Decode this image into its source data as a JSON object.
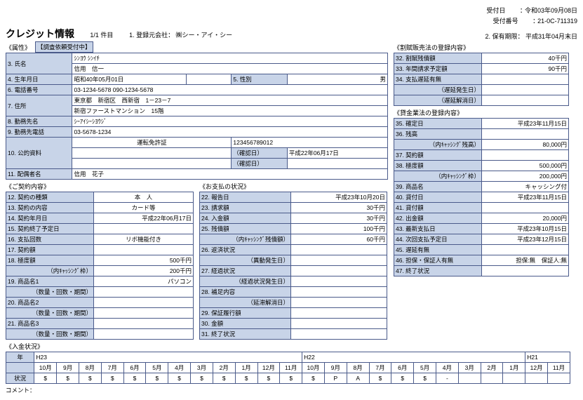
{
  "header": {
    "receipt_date_label": "受付日",
    "receipt_date": "令和03年09月08日",
    "receipt_no_label": "受付番号",
    "receipt_no": "21-0C-711319",
    "retention_label": "2. 保有期限：",
    "retention": "平成31年04月末日"
  },
  "title": "クレジット情報",
  "page_info": "1/1 件目",
  "reg_company_label": "1. 登録元会社：",
  "reg_company": "㈱シー・アイ・シー",
  "attr_header": "《属性》",
  "notice": "【調査依頼受付中】",
  "rows": {
    "r3_label": "3. 氏名",
    "r3_kana": "ｼﾝﾖｳ ｼﾝｲﾁ",
    "r3_name": "信用　信一",
    "r4_label": "4. 生年月日",
    "r4_val": "昭和40年05月01日",
    "r5_label": "5. 性別",
    "r5_val": "男",
    "r6_label": "6. 電話番号",
    "r6_val": "03-1234-5678 090-1234-5678",
    "r7_label": "7. 住所",
    "r7_val1": "東京都　新宿区　西新宿　1－23－7",
    "r7_val2": "新宿ファーストマンション　15階",
    "r8_label": "8. 勤務先名",
    "r8_val": "ｼｰｱｲｼｰｼﾖｳｼﾞ",
    "r9_label": "9. 勤務先電話",
    "r9_val": "03-5678-1234",
    "r10_label": "10. 公的資料",
    "r10_type": "運転免許証",
    "r10_num": "123456789012",
    "r10_conf_label": "（確認日）",
    "r10_conf": "平成22年06月17日",
    "r11_label": "11. 配偶者名",
    "r11_val": "信用　花子"
  },
  "contract_header": "《ご契約内容》",
  "contract": {
    "r12_label": "12. 契約の種類",
    "r12_val": "本　人",
    "r13_label": "13. 契約の内容",
    "r13_val": "カード等",
    "r14_label": "14. 契約年月日",
    "r14_val": "平成22年06月17日",
    "r15_label": "15. 契約終了予定日",
    "r15_val": "",
    "r16_label": "16. 支払回数",
    "r16_val": "リボ機能付き",
    "r17_label": "17. 契約額",
    "r17_val": "",
    "r18_label": "18. 極度額",
    "r18_val": "500千円",
    "r18s_label": "（内ｷｬｯｼﾝｸﾞ枠）",
    "r18s_val": "200千円",
    "r19_label": "19. 商品名1",
    "r19_val": "パソコン",
    "r19s_label": "（数量・回数・期間）",
    "r20_label": "20. 商品名2",
    "r20s_label": "（数量・回数・期間）",
    "r21_label": "21. 商品名3",
    "r21s_label": "（数量・回数・期間）"
  },
  "payment_header": "《お支払の状況》",
  "payment": {
    "r22_label": "22. 報告日",
    "r22_val": "平成23年10月20日",
    "r23_label": "23. 請求額",
    "r23_val": "30千円",
    "r24_label": "24. 入金額",
    "r24_val": "30千円",
    "r25_label": "25. 残債額",
    "r25_val": "100千円",
    "r25s_label": "（内ｷｬｯｼﾝｸﾞ残債額）",
    "r25s_val": "60千円",
    "r26_label": "26. 返済状況",
    "r26s_label": "（異動発生日）",
    "r27_label": "27. 経過状況",
    "r27s_label": "（経過状況発生日）",
    "r28_label": "28. 補足内容",
    "r28s_label": "（延滞解消日）",
    "r29_label": "29. 保証履行額",
    "r30_label": "30. 金額",
    "r31_label": "31. 終了状況"
  },
  "install_header": "《割賦販売法の登録内容》",
  "install": {
    "r32_label": "32. 割賦残債額",
    "r32_val": "40千円",
    "r33_label": "33. 年間請求予定額",
    "r33_val": "90千円",
    "r34_label": "34. 支払遅延有無",
    "r34a_label": "（遅延発生日）",
    "r34b_label": "（遅延解消日）"
  },
  "loan_header": "《貸金業法の登録内容》",
  "loan": {
    "r35_label": "35. 確定日",
    "r35_val": "平成23年11月15日",
    "r36_label": "36. 残高",
    "r36_val": "",
    "r36s_label": "（内ｷｬｯｼﾝｸﾞ残高）",
    "r36s_val": "80,000円",
    "r37_label": "37. 契約額",
    "r38_label": "38. 極度額",
    "r38_val": "500,000円",
    "r38s_label": "（内ｷｬｯｼﾝｸﾞ枠）",
    "r38s_val": "200,000円",
    "r39_label": "39. 商品名",
    "r39_val": "キャッシング付",
    "r40_label": "40. 貸付日",
    "r40_val": "平成23年11月15日",
    "r41_label": "41. 貸付額",
    "r42_label": "42. 出金額",
    "r42_val": "20,000円",
    "r43_label": "43. 最新支払日",
    "r43_val": "平成23年10月15日",
    "r44_label": "44. 次回支払予定日",
    "r44_val": "平成23年12月15日",
    "r45_label": "45. 遅延有無",
    "r46_label": "46. 担保・保証人有無",
    "r46_val": "担保:無　保証人:無",
    "r47_label": "47. 終了状況"
  },
  "deposit_header": "《入金状況》",
  "deposit": {
    "year_label": "年",
    "status_label": "状況",
    "years": [
      "H23",
      "H22",
      "H21"
    ],
    "months": [
      "10月",
      "9月",
      "8月",
      "7月",
      "6月",
      "5月",
      "4月",
      "3月",
      "2月",
      "1月",
      "12月",
      "11月",
      "10月",
      "9月",
      "8月",
      "7月",
      "6月",
      "5月",
      "4月",
      "3月",
      "2月",
      "1月",
      "12月",
      "11月"
    ],
    "statuses": [
      "$",
      "$",
      "$",
      "$",
      "$",
      "$",
      "$",
      "$",
      "$",
      "$",
      "$",
      "$",
      "$",
      "P",
      "A",
      "$",
      "$",
      "$",
      "-",
      "",
      "",
      "",
      "",
      ""
    ]
  },
  "comment_label": "コメント："
}
